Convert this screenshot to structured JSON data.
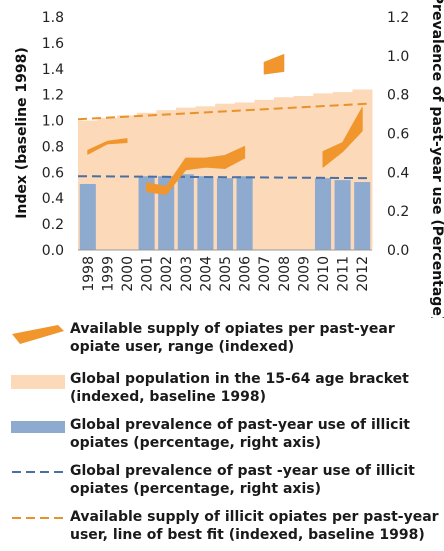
{
  "colors": {
    "supply_range": "#f0962d",
    "population": "#fcd9b8",
    "prevalence_bar": "#8faacf",
    "prevalence_line": "#4a6fa0",
    "trend_line": "#e8922a"
  },
  "chart_data": {
    "type": "bar",
    "categories": [
      "1998",
      "1999",
      "2000",
      "2001",
      "2002",
      "2003",
      "2004",
      "2005",
      "2006",
      "2007",
      "2008",
      "2009",
      "2010",
      "2011",
      "2012"
    ],
    "left_axis": {
      "label": "Index (baseline 1998)",
      "ylim": [
        0,
        1.8
      ],
      "ticks": [
        "0.0",
        "0.2",
        "0.4",
        "0.6",
        "0.8",
        "1.0",
        "1.2",
        "1.4",
        "1.6",
        "1.8"
      ]
    },
    "right_axis": {
      "label": "Prevalence of past-year use (Percentage)",
      "ylim": [
        0,
        1.2
      ],
      "ticks": [
        "0.0",
        "0.2",
        "0.4",
        "0.6",
        "0.8",
        "1.0",
        "1.2"
      ]
    },
    "series": [
      {
        "name": "Available supply of opiates per past-year opiate user, range (indexed)",
        "type": "range",
        "axis": "left",
        "x": [
          1998,
          1999,
          2000,
          2001,
          2002,
          2003,
          2004,
          2005,
          2006,
          2007,
          2008,
          2010,
          2011,
          2012
        ],
        "low": [
          0.74,
          0.82,
          0.83,
          0.45,
          0.43,
          0.62,
          0.64,
          0.63,
          0.71,
          1.36,
          1.38,
          0.64,
          0.76,
          0.92
        ],
        "high": [
          0.77,
          0.84,
          0.86,
          0.52,
          0.49,
          0.71,
          0.71,
          0.73,
          0.8,
          1.45,
          1.51,
          0.76,
          0.83,
          1.1
        ],
        "segments": [
          [
            1998,
            2000
          ],
          [
            2001,
            2006
          ],
          [
            2007,
            2008
          ],
          [
            2010,
            2012
          ]
        ]
      },
      {
        "name": "Global population in the 15-64 age bracket (indexed, baseline 1998)",
        "type": "bar",
        "axis": "left",
        "values": [
          1.0,
          1.02,
          1.04,
          1.06,
          1.08,
          1.1,
          1.11,
          1.13,
          1.14,
          1.16,
          1.18,
          1.19,
          1.21,
          1.22,
          1.24
        ]
      },
      {
        "name": "Global prevalence of past-year use of illicit opiates (percentage, right axis)",
        "type": "bar",
        "axis": "right",
        "values": [
          0.34,
          null,
          null,
          0.38,
          0.38,
          0.39,
          0.38,
          0.37,
          0.38,
          null,
          null,
          null,
          0.37,
          0.36,
          0.35
        ]
      },
      {
        "name": "Global prevalence of past -year use of illicit opiates (percentage, right axis)",
        "type": "line",
        "axis": "right",
        "style": "dashed",
        "values": [
          0.38,
          null,
          null,
          null,
          null,
          null,
          null,
          null,
          null,
          null,
          null,
          null,
          null,
          null,
          0.37
        ]
      },
      {
        "name": "Available supply of illicit opiates per past-year user, line of best fit (indexed, baseline 1998)",
        "type": "line",
        "axis": "left",
        "style": "dashed",
        "values": [
          1.01,
          null,
          null,
          null,
          null,
          null,
          null,
          null,
          null,
          null,
          null,
          null,
          null,
          null,
          1.13
        ]
      }
    ],
    "grid": false,
    "legend_position": "bottom"
  },
  "legend": [
    {
      "key": "range",
      "label": "Available supply of opiates per past-year opiate user, range (indexed)"
    },
    {
      "key": "population",
      "label": "Global population in the 15-64 age bracket (indexed, baseline 1998)"
    },
    {
      "key": "prevalence_bar",
      "label": "Global prevalence of past-year use of illicit opiates (percentage, right axis)"
    },
    {
      "key": "prevalence_line",
      "label": "Global prevalence of past -year use of illicit opiates (percentage, right axis)"
    },
    {
      "key": "trend_line",
      "label": "Available supply of illicit opiates per past-year user, line of best fit (indexed, baseline 1998)"
    }
  ]
}
